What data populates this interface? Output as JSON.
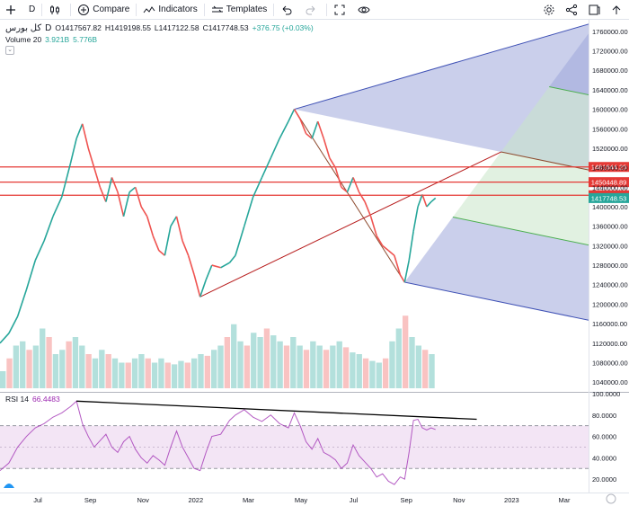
{
  "toolbar": {
    "interval": "D",
    "compare": "Compare",
    "indicators": "Indicators",
    "templates": "Templates"
  },
  "legend": {
    "symbol": "کل بورس",
    "interval": "D",
    "open": "O1417567.82",
    "high": "H1419198.55",
    "low": "L1417122.58",
    "close": "C1417748.53",
    "change": "+376.75 (+0.03%)",
    "volume_label": "Volume 20",
    "volume_value": "3.921B",
    "volume_ma": "5.776B"
  },
  "rsi": {
    "label": "RSI 14",
    "value": "66.4483"
  },
  "colors": {
    "up": "#26a69a",
    "down": "#ef5350",
    "level_line": "#e53935",
    "rsi_line": "#9c27b0",
    "rsi_band": "#f3e5f5",
    "fork_blue": "#9fa8da",
    "fork_green": "#c8e6c9"
  },
  "chart_data": {
    "type": "line",
    "price_axis": {
      "ticks": [
        "1760000.00",
        "1720000.00",
        "1680000.00",
        "1640000.00",
        "1600000.00",
        "1560000.00",
        "1520000.00",
        "1480000.00",
        "1440000.00",
        "1400000.00",
        "1360000.00",
        "1320000.00",
        "1280000.00",
        "1240000.00",
        "1200000.00",
        "1160000.00",
        "1120000.00",
        "1080000.00",
        "1040000.00"
      ],
      "ylim": [
        1020000,
        1780000
      ]
    },
    "rsi_axis": {
      "ticks": [
        "100.0000",
        "80.0000",
        "60.0000",
        "40.0000",
        "20.0000"
      ],
      "ylim": [
        10,
        100
      ],
      "upper_band": 70,
      "lower_band": 30
    },
    "time_axis": {
      "ticks": [
        "Jul",
        "Sep",
        "Nov",
        "2022",
        "Mar",
        "May",
        "Jul",
        "Sep",
        "Nov",
        "2023",
        "Mar"
      ]
    },
    "price_labels": [
      {
        "value": "1481644.20",
        "price": 1481644.2,
        "color": "#e53935"
      },
      {
        "value": "1450448.89",
        "price": 1450448.89,
        "color": "#e53935"
      },
      {
        "value": "1423586.26",
        "price": 1423586.26,
        "color": "#e53935"
      },
      {
        "value": "1417748.53",
        "price": 1417748.53,
        "color": "#26a69a"
      }
    ],
    "price_series": {
      "name": "",
      "points": [
        [
          0,
          1120000
        ],
        [
          0.3,
          1140000
        ],
        [
          0.6,
          1175000
        ],
        [
          0.9,
          1230000
        ],
        [
          1.2,
          1290000
        ],
        [
          1.5,
          1330000
        ],
        [
          1.8,
          1380000
        ],
        [
          2.1,
          1420000
        ],
        [
          2.4,
          1490000
        ],
        [
          2.6,
          1540000
        ],
        [
          2.8,
          1570000
        ],
        [
          3.0,
          1520000
        ],
        [
          3.2,
          1480000
        ],
        [
          3.4,
          1440000
        ],
        [
          3.6,
          1410000
        ],
        [
          3.8,
          1460000
        ],
        [
          4.0,
          1430000
        ],
        [
          4.2,
          1380000
        ],
        [
          4.4,
          1430000
        ],
        [
          4.6,
          1440000
        ],
        [
          4.8,
          1400000
        ],
        [
          5.0,
          1380000
        ],
        [
          5.2,
          1340000
        ],
        [
          5.4,
          1310000
        ],
        [
          5.6,
          1300000
        ],
        [
          5.8,
          1360000
        ],
        [
          6.0,
          1380000
        ],
        [
          6.2,
          1330000
        ],
        [
          6.4,
          1300000
        ],
        [
          6.6,
          1260000
        ],
        [
          6.8,
          1215000
        ],
        [
          7.0,
          1250000
        ],
        [
          7.2,
          1280000
        ],
        [
          7.5,
          1275000
        ],
        [
          7.8,
          1285000
        ],
        [
          8.0,
          1300000
        ],
        [
          8.3,
          1360000
        ],
        [
          8.6,
          1420000
        ],
        [
          8.9,
          1460000
        ],
        [
          9.2,
          1500000
        ],
        [
          9.5,
          1540000
        ],
        [
          9.8,
          1575000
        ],
        [
          10.0,
          1600000
        ],
        [
          10.2,
          1580000
        ],
        [
          10.4,
          1550000
        ],
        [
          10.6,
          1540000
        ],
        [
          10.8,
          1575000
        ],
        [
          11.0,
          1540000
        ],
        [
          11.2,
          1500000
        ],
        [
          11.4,
          1480000
        ],
        [
          11.6,
          1440000
        ],
        [
          11.8,
          1430000
        ],
        [
          12.0,
          1460000
        ],
        [
          12.2,
          1430000
        ],
        [
          12.4,
          1410000
        ],
        [
          12.6,
          1380000
        ],
        [
          12.8,
          1340000
        ],
        [
          13.0,
          1320000
        ],
        [
          13.2,
          1310000
        ],
        [
          13.4,
          1300000
        ],
        [
          13.6,
          1260000
        ],
        [
          13.75,
          1245000
        ],
        [
          13.9,
          1290000
        ],
        [
          14.05,
          1350000
        ],
        [
          14.2,
          1400000
        ],
        [
          14.35,
          1425000
        ],
        [
          14.5,
          1400000
        ],
        [
          14.65,
          1410000
        ],
        [
          14.8,
          1417748
        ]
      ]
    },
    "rsi_series": {
      "name": "",
      "points": [
        [
          0,
          28
        ],
        [
          0.3,
          35
        ],
        [
          0.6,
          50
        ],
        [
          0.9,
          60
        ],
        [
          1.2,
          68
        ],
        [
          1.5,
          72
        ],
        [
          1.8,
          78
        ],
        [
          2.1,
          82
        ],
        [
          2.4,
          88
        ],
        [
          2.6,
          93
        ],
        [
          2.8,
          72
        ],
        [
          3.0,
          60
        ],
        [
          3.2,
          50
        ],
        [
          3.4,
          56
        ],
        [
          3.6,
          62
        ],
        [
          3.8,
          50
        ],
        [
          4.0,
          45
        ],
        [
          4.2,
          55
        ],
        [
          4.4,
          60
        ],
        [
          4.6,
          48
        ],
        [
          4.8,
          40
        ],
        [
          5.0,
          35
        ],
        [
          5.2,
          42
        ],
        [
          5.4,
          38
        ],
        [
          5.6,
          33
        ],
        [
          5.8,
          50
        ],
        [
          6.0,
          65
        ],
        [
          6.2,
          50
        ],
        [
          6.4,
          40
        ],
        [
          6.6,
          30
        ],
        [
          6.8,
          28
        ],
        [
          7.0,
          45
        ],
        [
          7.2,
          60
        ],
        [
          7.5,
          62
        ],
        [
          7.8,
          75
        ],
        [
          8.0,
          80
        ],
        [
          8.3,
          85
        ],
        [
          8.6,
          78
        ],
        [
          8.9,
          74
        ],
        [
          9.2,
          80
        ],
        [
          9.5,
          72
        ],
        [
          9.8,
          68
        ],
        [
          10.0,
          82
        ],
        [
          10.2,
          70
        ],
        [
          10.4,
          55
        ],
        [
          10.6,
          48
        ],
        [
          10.8,
          58
        ],
        [
          11.0,
          45
        ],
        [
          11.2,
          42
        ],
        [
          11.4,
          38
        ],
        [
          11.6,
          30
        ],
        [
          11.8,
          35
        ],
        [
          12.0,
          52
        ],
        [
          12.2,
          42
        ],
        [
          12.4,
          36
        ],
        [
          12.6,
          30
        ],
        [
          12.8,
          22
        ],
        [
          13.0,
          25
        ],
        [
          13.2,
          18
        ],
        [
          13.4,
          15
        ],
        [
          13.6,
          22
        ],
        [
          13.75,
          20
        ],
        [
          13.9,
          45
        ],
        [
          14.05,
          75
        ],
        [
          14.2,
          76
        ],
        [
          14.35,
          68
        ],
        [
          14.5,
          66
        ],
        [
          14.65,
          68
        ],
        [
          14.8,
          66.4
        ]
      ]
    },
    "volume_series": {
      "name": "",
      "values": [
        0.2,
        0.35,
        0.5,
        0.55,
        0.45,
        0.5,
        0.7,
        0.6,
        0.4,
        0.45,
        0.55,
        0.6,
        0.5,
        0.4,
        0.35,
        0.45,
        0.4,
        0.35,
        0.3,
        0.3,
        0.35,
        0.4,
        0.35,
        0.3,
        0.35,
        0.3,
        0.28,
        0.32,
        0.3,
        0.35,
        0.4,
        0.38,
        0.45,
        0.5,
        0.6,
        0.75,
        0.55,
        0.5,
        0.65,
        0.6,
        0.7,
        0.62,
        0.55,
        0.5,
        0.6,
        0.5,
        0.45,
        0.55,
        0.5,
        0.45,
        0.5,
        0.55,
        0.48,
        0.42,
        0.4,
        0.35,
        0.32,
        0.3,
        0.35,
        0.55,
        0.7,
        0.85,
        0.6,
        0.5,
        0.45,
        0.4
      ]
    },
    "x_range": [
      0,
      20
    ]
  }
}
